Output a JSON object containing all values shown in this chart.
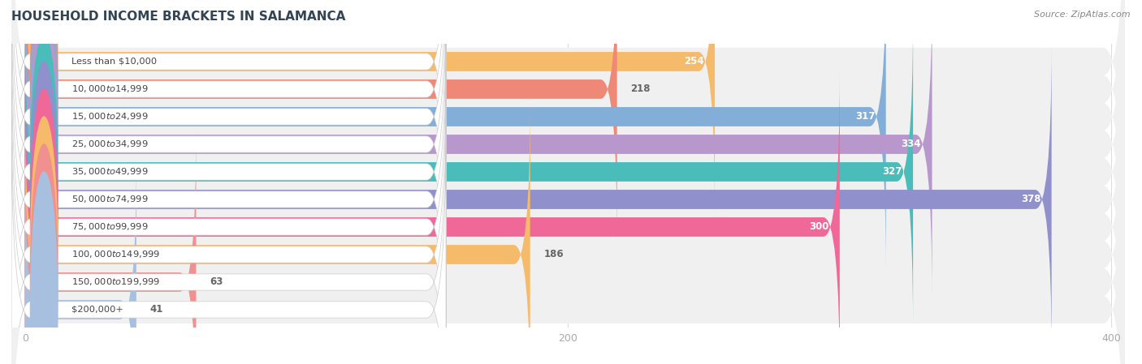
{
  "title": "HOUSEHOLD INCOME BRACKETS IN SALAMANCA",
  "source": "Source: ZipAtlas.com",
  "categories": [
    "Less than $10,000",
    "$10,000 to $14,999",
    "$15,000 to $24,999",
    "$25,000 to $34,999",
    "$35,000 to $49,999",
    "$50,000 to $74,999",
    "$75,000 to $99,999",
    "$100,000 to $149,999",
    "$150,000 to $199,999",
    "$200,000+"
  ],
  "values": [
    254,
    218,
    317,
    334,
    327,
    378,
    300,
    186,
    63,
    41
  ],
  "bar_colors": [
    "#f5bb6a",
    "#f08878",
    "#82aed8",
    "#b898cc",
    "#4abcba",
    "#9090cc",
    "#f06898",
    "#f5bb6a",
    "#f09090",
    "#a8c0e0"
  ],
  "xlim_data": [
    0,
    400
  ],
  "xticks": [
    0,
    200,
    400
  ],
  "background_color": "#ffffff",
  "row_bg_color": "#f0f0f0",
  "label_bg_color": "#ffffff",
  "label_color": "#444444",
  "value_color_white": [
    true,
    false,
    true,
    true,
    true,
    true,
    true,
    false,
    false,
    false
  ],
  "value_color_dark": "#666666",
  "title_color": "#334455",
  "source_color": "#888888",
  "grid_color": "#dddddd"
}
